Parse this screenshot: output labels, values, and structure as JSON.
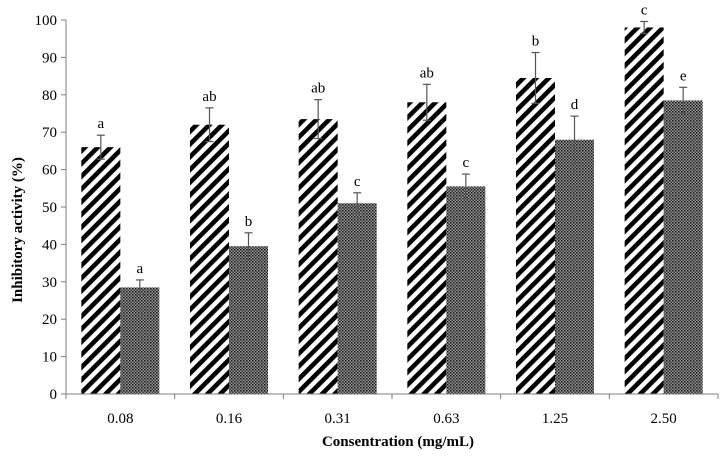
{
  "chart_data": {
    "type": "bar",
    "title": "",
    "xlabel": "Consentration (mg/mL)",
    "ylabel": "Inhibitory  activity (%)",
    "ylim": [
      0,
      100
    ],
    "ytick_step": 10,
    "categories": [
      "0.08",
      "0.16",
      "0.31",
      "0.63",
      "1.25",
      "2.50"
    ],
    "grid": false,
    "legend": "none",
    "series": [
      {
        "pattern": "diagonal-hatch",
        "color": "#000000",
        "values": [
          66,
          72,
          73.5,
          78,
          84.5,
          98
        ],
        "errors": [
          3.2,
          4.5,
          5.2,
          4.8,
          6.8,
          1.6
        ],
        "labels": [
          "a",
          "ab",
          "ab",
          "ab",
          "b",
          "c"
        ]
      },
      {
        "pattern": "fine-dots",
        "color": "#000000",
        "values": [
          28.5,
          39.5,
          51,
          55.5,
          68,
          78.5
        ],
        "errors": [
          2.0,
          3.6,
          2.8,
          3.3,
          6.3,
          3.5
        ],
        "labels": [
          "a",
          "b",
          "c",
          "c",
          "d",
          "e"
        ]
      }
    ]
  }
}
